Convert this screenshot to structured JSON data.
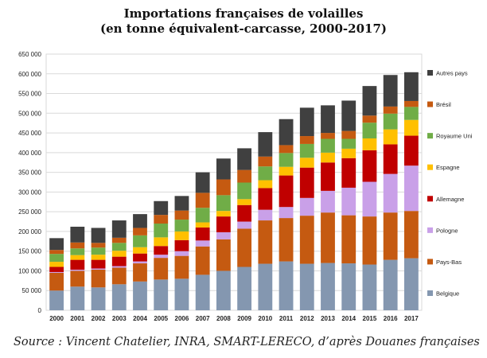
{
  "title": {
    "line1": "Importations françaises de volailles",
    "line2": "(en tonne équivalent-carcasse, 2000-2017)"
  },
  "source": "Source : Vincent Chatelier, INRA, SMART-LERECO, d’après Douanes françaises",
  "chart_data": {
    "type": "bar",
    "stacked": true,
    "categories": [
      "2000",
      "2001",
      "2002",
      "2003",
      "2004",
      "2005",
      "2006",
      "2007",
      "2008",
      "2009",
      "2010",
      "2011",
      "2012",
      "2013",
      "2014",
      "2015",
      "2016",
      "2017"
    ],
    "ylim": [
      0,
      650000
    ],
    "yticks": [
      0,
      50000,
      100000,
      150000,
      200000,
      250000,
      300000,
      350000,
      400000,
      450000,
      500000,
      550000,
      600000,
      650000
    ],
    "ytick_labels": [
      "0",
      "50 000",
      "100 000",
      "150 000",
      "200 000",
      "250 000",
      "300 000",
      "350 000",
      "400 000",
      "450 000",
      "500 000",
      "550 000",
      "600 000",
      "650 000"
    ],
    "grid": true,
    "legend_position": "right",
    "series": [
      {
        "name": "Belgique",
        "color": "#8497b0",
        "values": [
          50000,
          60000,
          58000,
          66000,
          73000,
          78000,
          80000,
          90000,
          100000,
          110000,
          118000,
          124000,
          118000,
          120000,
          119000,
          116000,
          128000,
          132000
        ]
      },
      {
        "name": "Pays-Bas",
        "color": "#c55a11",
        "values": [
          45000,
          40000,
          45000,
          42000,
          46000,
          55000,
          58000,
          72000,
          80000,
          97000,
          110000,
          110000,
          122000,
          128000,
          122000,
          122000,
          120000,
          120000
        ]
      },
      {
        "name": "Pologne",
        "color": "#c9a0e8",
        "values": [
          2000,
          3000,
          3000,
          4000,
          5000,
          8000,
          12000,
          15000,
          18000,
          18000,
          27000,
          28000,
          45000,
          55000,
          70000,
          88000,
          98000,
          115000
        ]
      },
      {
        "name": "Allemagne",
        "color": "#c00000",
        "values": [
          13000,
          25000,
          22000,
          24000,
          20000,
          22000,
          28000,
          33000,
          40000,
          42000,
          55000,
          80000,
          77000,
          72000,
          75000,
          80000,
          75000,
          76000
        ]
      },
      {
        "name": "Espagne",
        "color": "#ffc000",
        "values": [
          13000,
          12000,
          13000,
          15000,
          16000,
          22000,
          22000,
          13000,
          14000,
          15000,
          20000,
          22000,
          25000,
          25000,
          24000,
          30000,
          38000,
          40000
        ]
      },
      {
        "name": "Royaume Uni",
        "color": "#70ad47",
        "values": [
          20000,
          17000,
          18000,
          20000,
          30000,
          35000,
          30000,
          37000,
          40000,
          42000,
          35000,
          35000,
          35000,
          35000,
          25000,
          40000,
          40000,
          33000
        ]
      },
      {
        "name": "Brésil",
        "color": "#c55a11",
        "values": [
          10000,
          15000,
          12000,
          13000,
          19000,
          22000,
          23000,
          38000,
          40000,
          32000,
          25000,
          20000,
          20000,
          15000,
          20000,
          18000,
          18000,
          15000
        ]
      },
      {
        "name": "Autres pays",
        "color": "#404040",
        "values": [
          30000,
          40000,
          38000,
          44000,
          35000,
          35000,
          37000,
          52000,
          53000,
          55000,
          62000,
          66000,
          72000,
          70000,
          77000,
          75000,
          80000,
          73000
        ]
      }
    ]
  }
}
